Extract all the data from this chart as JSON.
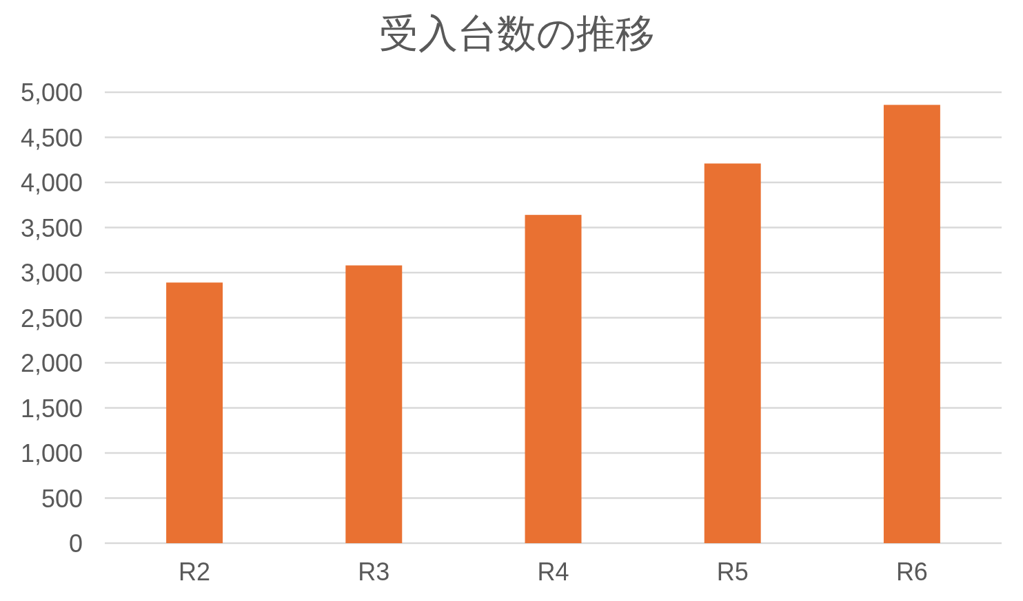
{
  "chart_data": {
    "type": "bar",
    "title": "受入台数の推移",
    "categories": [
      "R2",
      "R3",
      "R4",
      "R5",
      "R6"
    ],
    "values": [
      2890,
      3080,
      3640,
      4210,
      4860
    ],
    "color": "#e97132",
    "ylim": [
      0,
      5000
    ],
    "yticks": [
      0,
      500,
      {
        "value": 1000,
        "label": "1,000"
      },
      {
        "value": 1500,
        "label": "1,500"
      },
      {
        "value": 2000,
        "label": "2,000"
      },
      {
        "value": 2500,
        "label": "2,500"
      },
      {
        "value": 3000,
        "label": "3,000"
      },
      {
        "value": 3500,
        "label": "3,500"
      },
      {
        "value": 4000,
        "label": "4,000"
      },
      {
        "value": 4500,
        "label": "4,500"
      },
      {
        "value": 5000,
        "label": "5,000"
      }
    ],
    "grid": "y"
  }
}
